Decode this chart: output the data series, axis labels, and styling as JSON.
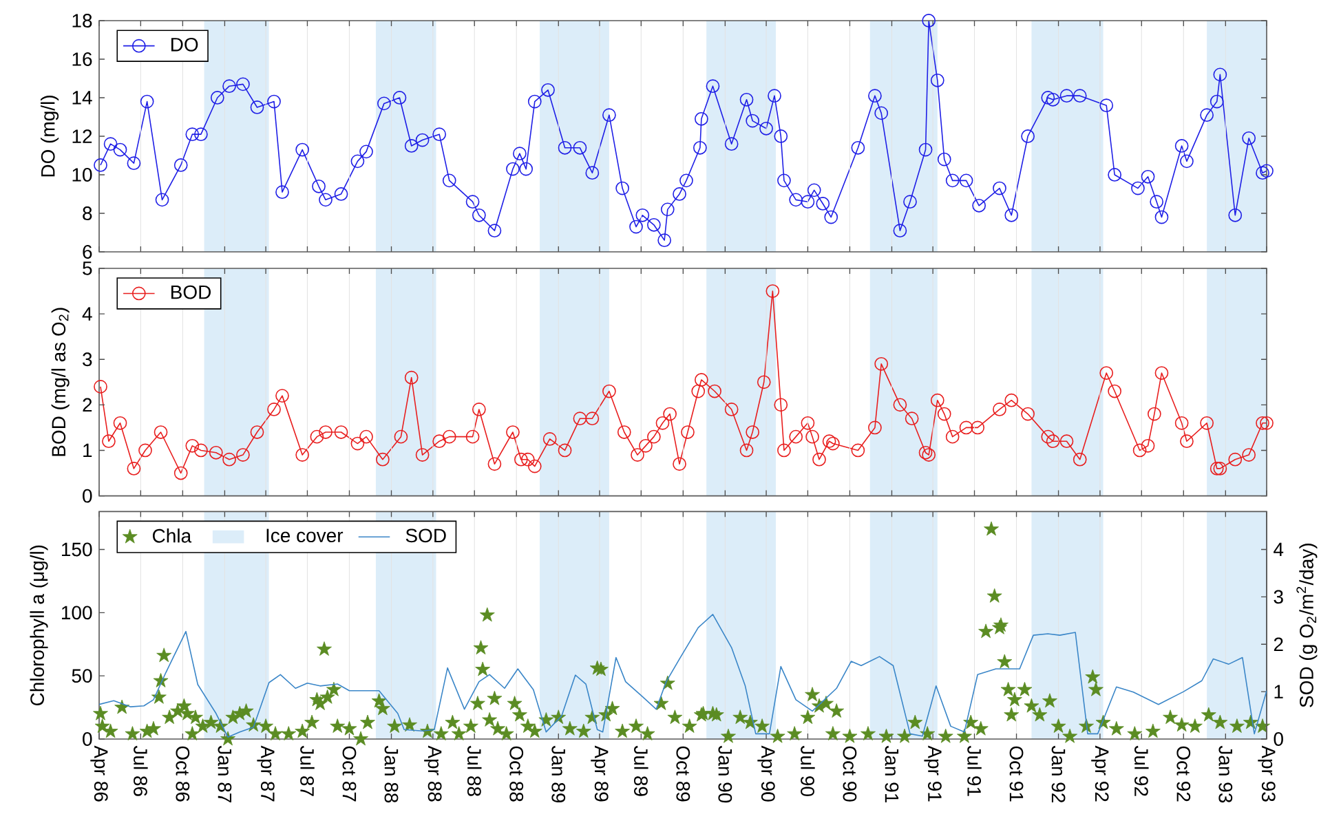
{
  "chart_data": [
    {
      "type": "line",
      "ylabel": "DO (mg/l)",
      "xlim": [
        "1986-04-01",
        "1993-04-01"
      ],
      "ylim": [
        6,
        18
      ],
      "yticks": [
        6,
        8,
        10,
        12,
        14,
        16,
        18
      ],
      "grid": "x",
      "legend": "top left",
      "marker": "circle",
      "tick_labels": "y",
      "xticks": [
        {
          "value": "1986-04",
          "label": null
        },
        {
          "value": "1986-07",
          "label": null
        },
        {
          "value": "1986-10",
          "label": null
        },
        {
          "value": "1987-01",
          "label": null
        },
        {
          "value": "1987-04",
          "label": null
        },
        {
          "value": "1987-07",
          "label": null
        },
        {
          "value": "1987-10",
          "label": null
        },
        {
          "value": "1988-01",
          "label": null
        },
        {
          "value": "1988-04",
          "label": null
        },
        {
          "value": "1988-07",
          "label": null
        },
        {
          "value": "1988-10",
          "label": null
        },
        {
          "value": "1989-01",
          "label": null
        },
        {
          "value": "1989-04",
          "label": null
        },
        {
          "value": "1989-07",
          "label": null
        },
        {
          "value": "1989-10",
          "label": null
        },
        {
          "value": "1990-01",
          "label": null
        },
        {
          "value": "1990-04",
          "label": null
        },
        {
          "value": "1990-07",
          "label": null
        },
        {
          "value": "1990-10",
          "label": null
        },
        {
          "value": "1991-01",
          "label": null
        },
        {
          "value": "1991-04",
          "label": null
        },
        {
          "value": "1991-07",
          "label": null
        },
        {
          "value": "1991-10",
          "label": null
        },
        {
          "value": "1992-01",
          "label": null
        },
        {
          "value": "1992-04",
          "label": null
        },
        {
          "value": "1992-07",
          "label": null
        },
        {
          "value": "1992-10",
          "label": null
        },
        {
          "value": "1993-01",
          "label": null
        },
        {
          "value": "1993-04",
          "label": null
        }
      ],
      "bands": [
        {
          "axis": "x",
          "from": "1986-11-17",
          "to": "1987-04-08",
          "color": "#dcedf9"
        },
        {
          "axis": "x",
          "from": "1987-11-28",
          "to": "1988-04-08",
          "color": "#dcedf9"
        },
        {
          "axis": "x",
          "from": "1988-11-21",
          "to": "1989-04-22",
          "color": "#dcedf9"
        },
        {
          "axis": "x",
          "from": "1989-11-21",
          "to": "1990-04-22",
          "color": "#dcedf9"
        },
        {
          "axis": "x",
          "from": "1990-11-14",
          "to": "1991-04-11",
          "color": "#dcedf9"
        },
        {
          "axis": "x",
          "from": "1991-11-03",
          "to": "1992-04-08",
          "color": "#dcedf9"
        },
        {
          "axis": "x",
          "from": "1992-11-21",
          "to": "1993-04-01",
          "color": "#dcedf9"
        }
      ],
      "series": [
        {
          "name": "DO",
          "color": "#1f1fe6",
          "x": [
            "1986-04-04",
            "1986-04-26",
            "1986-05-17",
            "1986-06-16",
            "1986-07-15",
            "1986-08-17",
            "1986-09-27",
            "1986-10-22",
            "1986-11-10",
            "1986-12-16",
            "1987-01-11",
            "1987-02-10",
            "1987-03-13",
            "1987-04-19",
            "1987-05-07",
            "1987-06-20",
            "1987-07-26",
            "1987-08-10",
            "1987-09-13",
            "1987-10-19",
            "1987-11-07",
            "1987-12-16",
            "1988-01-19",
            "1988-02-14",
            "1988-03-09",
            "1988-04-15",
            "1988-05-07",
            "1988-06-27",
            "1988-07-11",
            "1988-08-14",
            "1988-09-23",
            "1988-10-08",
            "1988-10-22",
            "1988-11-10",
            "1988-12-09",
            "1989-01-15",
            "1989-02-17",
            "1989-03-16",
            "1989-04-22",
            "1989-05-21",
            "1989-06-20",
            "1989-07-04",
            "1989-07-29",
            "1989-08-21",
            "1989-08-28",
            "1989-09-23",
            "1989-10-08",
            "1989-11-07",
            "1989-11-10",
            "1989-12-05",
            "1990-01-15",
            "1990-02-17",
            "1990-03-02",
            "1990-04-01",
            "1990-04-19",
            "1990-05-03",
            "1990-05-10",
            "1990-06-05",
            "1990-07-01",
            "1990-07-15",
            "1990-08-03",
            "1990-08-21",
            "1990-10-19",
            "1990-11-25",
            "1990-12-09",
            "1991-01-19",
            "1991-02-10",
            "1991-03-16",
            "1991-03-23",
            "1991-04-11",
            "1991-04-26",
            "1991-05-14",
            "1991-06-13",
            "1991-07-11",
            "1991-08-25",
            "1991-09-20",
            "1991-10-26",
            "1991-12-09",
            "1991-12-20",
            "1992-01-19",
            "1992-02-17",
            "1992-04-15",
            "1992-05-03",
            "1992-06-23",
            "1992-07-15",
            "1992-08-03",
            "1992-08-14",
            "1992-09-27",
            "1992-10-08",
            "1992-11-21",
            "1992-12-13",
            "1992-12-20",
            "1993-01-22",
            "1993-02-21",
            "1993-03-23",
            "1993-04-01"
          ],
          "values": [
            10.5,
            11.6,
            11.3,
            10.6,
            13.8,
            8.7,
            10.5,
            12.1,
            12.1,
            14.0,
            14.6,
            14.7,
            13.5,
            13.8,
            9.1,
            11.3,
            9.4,
            8.7,
            9.0,
            10.7,
            11.2,
            13.7,
            14.0,
            11.5,
            11.8,
            12.1,
            9.7,
            8.6,
            7.9,
            7.1,
            10.3,
            11.1,
            10.3,
            13.8,
            14.4,
            11.4,
            11.4,
            10.1,
            13.1,
            9.3,
            7.3,
            7.9,
            7.4,
            6.6,
            8.2,
            9.0,
            9.7,
            11.4,
            12.9,
            14.6,
            11.6,
            13.9,
            12.8,
            12.4,
            14.1,
            12.0,
            9.7,
            8.7,
            8.6,
            9.2,
            8.5,
            7.8,
            11.4,
            14.1,
            13.2,
            7.1,
            8.6,
            11.3,
            18.0,
            14.9,
            10.8,
            9.7,
            9.7,
            8.4,
            9.3,
            7.9,
            12.0,
            14.0,
            13.9,
            14.1,
            14.1,
            13.6,
            10.0,
            9.3,
            9.9,
            8.6,
            7.8,
            11.5,
            10.7,
            13.1,
            13.8,
            15.2,
            7.9,
            11.9,
            10.1,
            10.2
          ]
        }
      ]
    },
    {
      "type": "line",
      "ylabel": "BOD (mg/l as O$_{2}$)",
      "xlim": [
        "1986-04-01",
        "1993-04-01"
      ],
      "ylim": [
        0,
        5
      ],
      "yticks": [
        0,
        1,
        2,
        3,
        4,
        5
      ],
      "grid": "x",
      "legend": "top left",
      "marker": "circle",
      "tick_labels": "y",
      "xticks": [
        {
          "value": "1986-04",
          "label": null
        },
        {
          "value": "1986-07",
          "label": null
        },
        {
          "value": "1986-10",
          "label": null
        },
        {
          "value": "1987-01",
          "label": null
        },
        {
          "value": "1987-04",
          "label": null
        },
        {
          "value": "1987-07",
          "label": null
        },
        {
          "value": "1987-10",
          "label": null
        },
        {
          "value": "1988-01",
          "label": null
        },
        {
          "value": "1988-04",
          "label": null
        },
        {
          "value": "1988-07",
          "label": null
        },
        {
          "value": "1988-10",
          "label": null
        },
        {
          "value": "1989-01",
          "label": null
        },
        {
          "value": "1989-04",
          "label": null
        },
        {
          "value": "1989-07",
          "label": null
        },
        {
          "value": "1989-10",
          "label": null
        },
        {
          "value": "1990-01",
          "label": null
        },
        {
          "value": "1990-04",
          "label": null
        },
        {
          "value": "1990-07",
          "label": null
        },
        {
          "value": "1990-10",
          "label": null
        },
        {
          "value": "1991-01",
          "label": null
        },
        {
          "value": "1991-04",
          "label": null
        },
        {
          "value": "1991-07",
          "label": null
        },
        {
          "value": "1991-10",
          "label": null
        },
        {
          "value": "1992-01",
          "label": null
        },
        {
          "value": "1992-04",
          "label": null
        },
        {
          "value": "1992-07",
          "label": null
        },
        {
          "value": "1992-10",
          "label": null
        },
        {
          "value": "1993-01",
          "label": null
        },
        {
          "value": "1993-04",
          "label": null
        }
      ],
      "bands": [
        {
          "axis": "x",
          "from": "1986-11-17",
          "to": "1987-04-08",
          "color": "#dcedf9"
        },
        {
          "axis": "x",
          "from": "1987-11-28",
          "to": "1988-04-08",
          "color": "#dcedf9"
        },
        {
          "axis": "x",
          "from": "1988-11-21",
          "to": "1989-04-22",
          "color": "#dcedf9"
        },
        {
          "axis": "x",
          "from": "1989-11-21",
          "to": "1990-04-22",
          "color": "#dcedf9"
        },
        {
          "axis": "x",
          "from": "1990-11-14",
          "to": "1991-04-11",
          "color": "#dcedf9"
        },
        {
          "axis": "x",
          "from": "1991-11-03",
          "to": "1992-04-08",
          "color": "#dcedf9"
        },
        {
          "axis": "x",
          "from": "1992-11-21",
          "to": "1993-04-01",
          "color": "#dcedf9"
        }
      ],
      "series": [
        {
          "name": "BOD",
          "color": "#e81e1e",
          "x": [
            "1986-04-04",
            "1986-04-22",
            "1986-05-17",
            "1986-06-16",
            "1986-07-11",
            "1986-08-14",
            "1986-09-27",
            "1986-10-22",
            "1986-11-10",
            "1986-12-13",
            "1987-01-11",
            "1987-02-10",
            "1987-03-13",
            "1987-04-19",
            "1987-05-07",
            "1987-06-20",
            "1987-07-22",
            "1987-08-10",
            "1987-09-13",
            "1987-10-19",
            "1987-11-07",
            "1987-12-13",
            "1988-01-22",
            "1988-02-14",
            "1988-03-09",
            "1988-04-15",
            "1988-05-07",
            "1988-06-27",
            "1988-07-11",
            "1988-08-14",
            "1988-09-23",
            "1988-10-11",
            "1988-10-26",
            "1988-11-10",
            "1988-12-13",
            "1989-01-15",
            "1989-02-17",
            "1989-03-16",
            "1989-04-22",
            "1989-05-25",
            "1989-06-23",
            "1989-07-11",
            "1989-07-29",
            "1989-08-17",
            "1989-09-02",
            "1989-09-23",
            "1989-10-11",
            "1989-11-03",
            "1989-11-10",
            "1989-12-09",
            "1990-01-15",
            "1990-02-17",
            "1990-03-02",
            "1990-03-27",
            "1990-04-15",
            "1990-05-03",
            "1990-05-10",
            "1990-06-05",
            "1990-07-01",
            "1990-07-11",
            "1990-07-26",
            "1990-08-17",
            "1990-08-25",
            "1990-10-19",
            "1990-11-25",
            "1990-12-09",
            "1991-01-19",
            "1991-02-14",
            "1991-03-16",
            "1991-03-23",
            "1991-04-11",
            "1991-04-26",
            "1991-05-14",
            "1991-06-13",
            "1991-07-08",
            "1991-08-25",
            "1991-09-20",
            "1991-10-26",
            "1991-12-09",
            "1991-12-20",
            "1992-01-19",
            "1992-02-17",
            "1992-04-15",
            "1992-05-03",
            "1992-06-27",
            "1992-07-15",
            "1992-07-29",
            "1992-08-14",
            "1992-09-27",
            "1992-10-08",
            "1992-11-21",
            "1992-12-13",
            "1992-12-20",
            "1993-01-22",
            "1993-02-21",
            "1993-03-23",
            "1993-04-01"
          ],
          "values": [
            2.4,
            1.2,
            1.6,
            0.6,
            1.0,
            1.4,
            0.5,
            1.1,
            1.0,
            0.95,
            0.8,
            0.9,
            1.4,
            1.9,
            2.2,
            0.9,
            1.3,
            1.4,
            1.4,
            1.15,
            1.3,
            0.8,
            1.3,
            2.6,
            0.9,
            1.2,
            1.3,
            1.3,
            1.9,
            0.7,
            1.4,
            0.8,
            0.8,
            0.65,
            1.25,
            1.0,
            1.7,
            1.7,
            2.3,
            1.4,
            0.9,
            1.1,
            1.3,
            1.6,
            1.8,
            0.7,
            1.4,
            2.3,
            2.55,
            2.3,
            1.9,
            1.0,
            1.4,
            2.5,
            4.5,
            2.0,
            1.0,
            1.3,
            1.6,
            1.3,
            0.8,
            1.2,
            1.15,
            1.0,
            1.5,
            2.9,
            2.0,
            1.7,
            0.95,
            0.9,
            2.1,
            1.8,
            1.3,
            1.5,
            1.5,
            1.9,
            2.1,
            1.8,
            1.3,
            1.2,
            1.2,
            0.8,
            2.7,
            2.3,
            1.0,
            1.1,
            1.8,
            2.7,
            1.6,
            1.2,
            1.6,
            0.6,
            0.6,
            0.8,
            0.9,
            1.6,
            1.6
          ]
        }
      ]
    },
    {
      "type": "scatter",
      "ylabel": "Chlorophyll a (μg/l)",
      "y2label": "SOD (g O$_{2}$/m$^{2}$/day)",
      "xlim": [
        "1986-04-01",
        "1993-04-01"
      ],
      "ylim": [
        0,
        180
      ],
      "yticks": [
        0,
        50,
        100,
        150
      ],
      "y2lim": [
        0,
        4.8
      ],
      "y2ticks": [
        0,
        1,
        2,
        3,
        4
      ],
      "grid": "x",
      "legend": "top left",
      "marker": "star",
      "xticks": [
        {
          "value": "1986-04",
          "label": "Apr 86"
        },
        {
          "value": "1986-07",
          "label": "Jul 86"
        },
        {
          "value": "1986-10",
          "label": "Oct 86"
        },
        {
          "value": "1987-01",
          "label": "Jan 87"
        },
        {
          "value": "1987-04",
          "label": "Apr 87"
        },
        {
          "value": "1987-07",
          "label": "Jul 87"
        },
        {
          "value": "1987-10",
          "label": "Oct 87"
        },
        {
          "value": "1988-01",
          "label": "Jan 88"
        },
        {
          "value": "1988-04",
          "label": "Apr 88"
        },
        {
          "value": "1988-07",
          "label": "Jul 88"
        },
        {
          "value": "1988-10",
          "label": "Oct 88"
        },
        {
          "value": "1989-01",
          "label": "Jan 89"
        },
        {
          "value": "1989-04",
          "label": "Apr 89"
        },
        {
          "value": "1989-07",
          "label": "Jul 89"
        },
        {
          "value": "1989-10",
          "label": "Oct 89"
        },
        {
          "value": "1990-01",
          "label": "Jan 90"
        },
        {
          "value": "1990-04",
          "label": "Apr 90"
        },
        {
          "value": "1990-07",
          "label": "Jul 90"
        },
        {
          "value": "1990-10",
          "label": "Oct 90"
        },
        {
          "value": "1991-01",
          "label": "Jan 91"
        },
        {
          "value": "1991-04",
          "label": "Apr 91"
        },
        {
          "value": "1991-07",
          "label": "Jul 91"
        },
        {
          "value": "1991-10",
          "label": "Oct 91"
        },
        {
          "value": "1992-01",
          "label": "Jan 92"
        },
        {
          "value": "1992-04",
          "label": "Apr 92"
        },
        {
          "value": "1992-07",
          "label": "Jul 92"
        },
        {
          "value": "1992-10",
          "label": "Oct 92"
        },
        {
          "value": "1993-01",
          "label": "Jan 93"
        },
        {
          "value": "1993-04",
          "label": "Apr 93"
        }
      ],
      "bands": [
        {
          "axis": "x",
          "from": "1986-11-17",
          "to": "1987-04-08",
          "color": "#dcedf9",
          "label": "Ice cover"
        },
        {
          "axis": "x",
          "from": "1987-11-28",
          "to": "1988-04-08",
          "color": "#dcedf9"
        },
        {
          "axis": "x",
          "from": "1988-11-21",
          "to": "1989-04-22",
          "color": "#dcedf9"
        },
        {
          "axis": "x",
          "from": "1989-11-21",
          "to": "1990-04-22",
          "color": "#dcedf9"
        },
        {
          "axis": "x",
          "from": "1990-11-14",
          "to": "1991-04-11",
          "color": "#dcedf9"
        },
        {
          "axis": "x",
          "from": "1991-11-03",
          "to": "1992-04-08",
          "color": "#dcedf9"
        },
        {
          "axis": "x",
          "from": "1992-11-21",
          "to": "1993-04-01",
          "color": "#dcedf9"
        }
      ],
      "series": [
        {
          "name": "Chla",
          "color": "#5b8c23",
          "x": [
            "1986-04-04",
            "1986-04-08",
            "1986-04-26",
            "1986-05-21",
            "1986-06-13",
            "1986-07-15",
            "1986-07-29",
            "1986-08-10",
            "1986-08-14",
            "1986-08-21",
            "1986-09-02",
            "1986-09-20",
            "1986-10-04",
            "1986-10-11",
            "1986-10-22",
            "1986-10-29",
            "1986-11-14",
            "1986-12-02",
            "1986-12-23",
            "1987-01-08",
            "1987-01-19",
            "1987-02-03",
            "1987-02-17",
            "1987-03-05",
            "1987-04-01",
            "1987-04-22",
            "1987-05-21",
            "1987-06-20",
            "1987-07-11",
            "1987-07-22",
            "1987-07-29",
            "1987-08-07",
            "1987-08-14",
            "1987-08-28",
            "1987-09-05",
            "1987-10-01",
            "1987-10-26",
            "1987-11-10",
            "1987-12-05",
            "1987-12-13",
            "1988-01-08",
            "1988-02-10",
            "1988-03-20",
            "1988-04-19",
            "1988-05-14",
            "1988-05-28",
            "1988-06-23",
            "1988-07-08",
            "1988-07-15",
            "1988-07-19",
            "1988-07-29",
            "1988-08-03",
            "1988-08-14",
            "1988-08-21",
            "1988-09-09",
            "1988-09-27",
            "1988-10-08",
            "1988-10-26",
            "1988-11-10",
            "1988-12-05",
            "1989-01-01",
            "1989-01-26",
            "1989-02-25",
            "1989-03-16",
            "1989-03-27",
            "1989-04-04",
            "1989-04-15",
            "1989-04-29",
            "1989-05-21",
            "1989-06-20",
            "1989-07-15",
            "1989-08-14",
            "1989-08-28",
            "1989-09-13",
            "1989-10-15",
            "1989-11-10",
            "1989-11-14",
            "1989-12-05",
            "1989-12-13",
            "1990-01-08",
            "1990-02-03",
            "1990-02-25",
            "1990-03-23",
            "1990-04-26",
            "1990-06-02",
            "1990-07-01",
            "1990-07-11",
            "1990-07-26",
            "1990-08-10",
            "1990-08-25",
            "1990-09-02",
            "1990-10-01",
            "1990-11-10",
            "1990-12-20",
            "1991-01-29",
            "1991-02-21",
            "1991-03-20",
            "1991-04-29",
            "1991-06-09",
            "1991-06-23",
            "1991-07-15",
            "1991-07-26",
            "1991-08-07",
            "1991-08-14",
            "1991-08-25",
            "1991-08-28",
            "1991-09-05",
            "1991-09-13",
            "1991-09-20",
            "1991-09-27",
            "1991-10-19",
            "1991-11-03",
            "1991-11-21",
            "1991-12-13",
            "1992-01-01",
            "1992-01-26",
            "1992-03-02",
            "1992-03-16",
            "1992-03-23",
            "1992-04-08",
            "1992-05-07",
            "1992-06-16",
            "1992-07-26",
            "1992-09-02",
            "1992-09-27",
            "1992-10-26",
            "1992-11-25",
            "1992-12-20",
            "1993-01-26",
            "1993-02-25",
            "1993-03-23"
          ],
          "values": [
            20,
            10,
            6,
            25,
            4,
            6,
            8,
            33,
            46,
            66,
            17,
            22,
            26,
            20,
            4,
            17,
            10,
            13,
            10,
            0,
            17,
            20,
            22,
            11,
            10,
            4,
            4,
            6,
            13,
            31,
            28,
            71,
            33,
            39,
            10,
            8,
            0,
            13,
            30,
            24,
            10,
            11,
            6,
            4,
            13,
            4,
            10,
            28,
            72,
            55,
            98,
            15,
            32,
            8,
            4,
            28,
            19,
            10,
            6,
            15,
            17,
            8,
            6,
            17,
            56,
            55,
            19,
            24,
            6,
            10,
            4,
            28,
            44,
            17,
            10,
            19,
            20,
            20,
            19,
            2,
            17,
            13,
            10,
            2,
            4,
            17,
            35,
            26,
            28,
            4,
            22,
            2,
            4,
            2,
            2,
            13,
            4,
            2,
            2,
            13,
            8,
            85,
            166,
            113,
            88,
            90,
            61,
            39,
            19,
            31,
            39,
            26,
            19,
            30,
            10,
            2,
            10,
            49,
            39,
            13,
            8,
            4,
            6,
            17,
            11,
            10,
            19,
            13,
            10,
            13,
            10
          ]
        },
        {
          "name": "SOD",
          "type": "line",
          "marker": "none",
          "axis": "y2",
          "color": "#3a86c8",
          "x": [
            "1986-04-01",
            "1986-05-03",
            "1986-06-09",
            "1986-07-08",
            "1986-07-29",
            "1986-08-25",
            "1986-10-08",
            "1986-11-03",
            "1986-12-13",
            "1987-01-08",
            "1987-02-03",
            "1987-03-05",
            "1987-04-08",
            "1987-05-03",
            "1987-06-05",
            "1987-07-01",
            "1987-07-29",
            "1987-09-05",
            "1987-10-01",
            "1987-12-05",
            "1988-01-15",
            "1988-01-29",
            "1988-03-09",
            "1988-04-04",
            "1988-05-03",
            "1988-06-09",
            "1988-07-11",
            "1988-08-03",
            "1988-09-05",
            "1988-10-04",
            "1988-11-07",
            "1988-12-05",
            "1989-01-08",
            "1989-02-07",
            "1989-03-02",
            "1989-03-27",
            "1989-04-08",
            "1989-05-07",
            "1989-05-28",
            "1989-07-01",
            "1989-08-03",
            "1989-08-25",
            "1989-09-23",
            "1989-11-03",
            "1989-12-05",
            "1990-01-15",
            "1990-02-14",
            "1990-03-09",
            "1990-04-08",
            "1990-05-03",
            "1990-06-05",
            "1990-07-11",
            "1990-09-02",
            "1990-10-04",
            "1990-10-26",
            "1990-12-05",
            "1991-01-04",
            "1991-02-10",
            "1991-03-09",
            "1991-04-08",
            "1991-05-10",
            "1991-06-09",
            "1991-07-08",
            "1991-08-17",
            "1991-10-08",
            "1991-11-07",
            "1991-12-09",
            "1992-01-04",
            "1992-02-07",
            "1992-03-05",
            "1992-03-27",
            "1992-05-07",
            "1992-06-13",
            "1992-08-07",
            "1992-10-01",
            "1992-11-10",
            "1992-12-05",
            "1993-01-08",
            "1993-02-07",
            "1993-03-05",
            "1993-04-01"
          ],
          "values": [
            0.73,
            0.81,
            0.68,
            0.7,
            0.83,
            1.4,
            2.27,
            1.15,
            0.54,
            0.04,
            0.15,
            0.25,
            1.19,
            1.36,
            1.07,
            1.18,
            1.12,
            1.16,
            1.02,
            1.02,
            0.54,
            0.2,
            0.17,
            0.2,
            1.5,
            0.63,
            1.21,
            1.36,
            1.07,
            1.48,
            1.04,
            0.15,
            0.49,
            1.35,
            1.16,
            0.2,
            0.15,
            1.72,
            1.21,
            0.92,
            0.63,
            1.21,
            1.69,
            2.35,
            2.63,
            1.93,
            1.12,
            0.11,
            0.11,
            1.53,
            0.83,
            0.59,
            1.07,
            1.64,
            1.55,
            1.74,
            1.55,
            0.11,
            0.06,
            1.12,
            0.27,
            0.15,
            1.36,
            1.48,
            1.48,
            2.19,
            2.22,
            2.19,
            2.25,
            0.11,
            0.11,
            1.1,
            0.99,
            0.73,
            1.0,
            1.23,
            1.69,
            1.58,
            1.72,
            0.11,
            1.02
          ]
        }
      ]
    }
  ]
}
